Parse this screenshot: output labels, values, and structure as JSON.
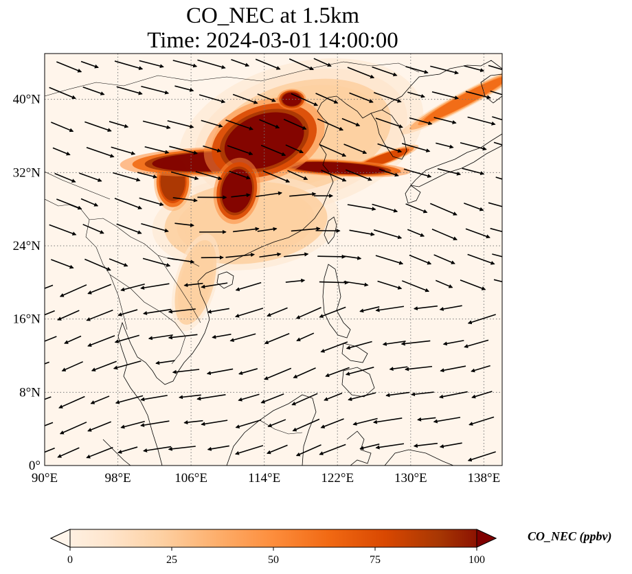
{
  "title": {
    "line1": "CO_NEC at 1.5km",
    "line2": "Time: 2024-03-01 14:00:00"
  },
  "map": {
    "type": "gridded-field-with-wind-vectors",
    "extent": {
      "lon": [
        90,
        140
      ],
      "lat": [
        0,
        45
      ]
    },
    "gridlines": true,
    "gridline_style": "dotted grey",
    "lon_ticks": [
      {
        "value": 90,
        "label": "90°E"
      },
      {
        "value": 98,
        "label": "98°E"
      },
      {
        "value": 106,
        "label": "106°E"
      },
      {
        "value": 114,
        "label": "114°E"
      },
      {
        "value": 122,
        "label": "122°E"
      },
      {
        "value": 130,
        "label": "130°E"
      },
      {
        "value": 138,
        "label": "138°E"
      }
    ],
    "lat_ticks": [
      {
        "value": 0,
        "label": "0°"
      },
      {
        "value": 8,
        "label": "8°N"
      },
      {
        "value": 16,
        "label": "16°N"
      },
      {
        "value": 24,
        "label": "24°N"
      },
      {
        "value": 32,
        "label": "32°N"
      },
      {
        "value": 40,
        "label": "40°N"
      }
    ],
    "field": {
      "variable": "CO_NEC",
      "background_value": 3,
      "plumes": [
        {
          "name": "north-china-core",
          "lon": 114,
          "lat": 35.5,
          "value": 100
        },
        {
          "name": "yangtze-west",
          "lon": 108.5,
          "lat": 33.2,
          "value": 98
        },
        {
          "name": "sichuan",
          "lon": 104,
          "lat": 31,
          "value": 85
        },
        {
          "name": "central-lobe",
          "lon": 111,
          "lat": 30,
          "value": 100
        },
        {
          "name": "east-band",
          "lon": 122,
          "lat": 32.5,
          "value": 95
        },
        {
          "name": "beijing",
          "lon": 117,
          "lat": 40,
          "value": 100
        },
        {
          "name": "korea-band",
          "lon": 127,
          "lat": 33.5,
          "value": 80
        },
        {
          "name": "japan-sea-band",
          "lon": 136,
          "lat": 40,
          "value": 60
        },
        {
          "name": "south-china",
          "lon": 112,
          "lat": 26.5,
          "value": 28
        },
        {
          "name": "indochina",
          "lon": 106.5,
          "lat": 20,
          "value": 30
        },
        {
          "name": "north-plain-haze",
          "lon": 118,
          "lat": 36,
          "value": 22
        }
      ]
    }
  },
  "colorbar": {
    "label": "CO_NEC (ppbv)",
    "min": 0,
    "max": 100,
    "extend": "both",
    "ticks": [
      {
        "value": 0,
        "label": "0"
      },
      {
        "value": 25,
        "label": "25"
      },
      {
        "value": 50,
        "label": "50"
      },
      {
        "value": 75,
        "label": "75"
      },
      {
        "value": 100,
        "label": "100"
      }
    ],
    "colors": [
      "#fff5eb",
      "#fee6ce",
      "#fdd0a2",
      "#fdae6b",
      "#fd8d3c",
      "#f16913",
      "#d94801",
      "#a63603",
      "#7f0000"
    ]
  }
}
